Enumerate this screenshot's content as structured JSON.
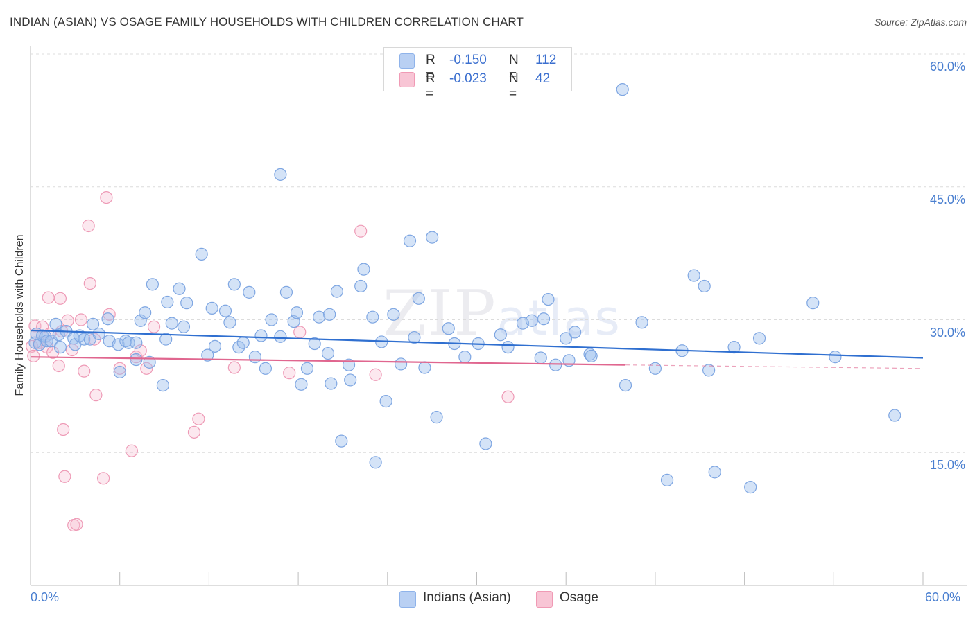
{
  "header": {
    "title": "INDIAN (ASIAN) VS OSAGE FAMILY HOUSEHOLDS WITH CHILDREN CORRELATION CHART",
    "source": "Source: ZipAtlas.com"
  },
  "watermark": {
    "zip": "ZIP",
    "atlas": "atlas"
  },
  "legend": {
    "r_label": "R =",
    "n_label": "N =",
    "entries": [
      {
        "name": "Indians (Asian)",
        "r": "-0.150",
        "n": "112",
        "color": "#8fb3ea",
        "fill": "#b9d0f3"
      },
      {
        "name": "Osage",
        "r": "-0.023",
        "n": "42",
        "color": "#f09ab5",
        "fill": "#f8c5d5"
      }
    ]
  },
  "colors": {
    "blue_line": "#2f6fd0",
    "pink_line": "#e0668f",
    "blue_point_stroke": "#7ea6e2",
    "blue_point_fill": "rgba(160,192,238,0.45)",
    "pink_point_stroke": "#ee9ab6",
    "pink_point_fill": "rgba(246,190,208,0.35)",
    "grid": "#dcdcdc",
    "tick_text": "#4a7fd0"
  },
  "chart_data": {
    "type": "scatter",
    "title": "INDIAN (ASIAN) VS OSAGE FAMILY HOUSEHOLDS WITH CHILDREN CORRELATION CHART",
    "xlabel": "",
    "ylabel": "Family Households with Children",
    "xlim": [
      0,
      60
    ],
    "ylim": [
      0,
      60
    ],
    "x_tick_labels": [
      "0.0%",
      "60.0%"
    ],
    "y_ticks": [
      15,
      30,
      45,
      60
    ],
    "y_tick_labels": [
      "15.0%",
      "30.0%",
      "45.0%",
      "60.0%"
    ],
    "grid": true,
    "series": [
      {
        "name": "Indians (Asian)",
        "r": -0.15,
        "n": 112,
        "trend": {
          "x": [
            0,
            60
          ],
          "y": [
            28.8,
            25.7
          ],
          "dashed_from": null
        },
        "points": [
          [
            0.3,
            27.4
          ],
          [
            0.4,
            28.4
          ],
          [
            0.6,
            27.2
          ],
          [
            0.8,
            28.2
          ],
          [
            1.0,
            28.1
          ],
          [
            1.1,
            27.6
          ],
          [
            1.4,
            27.6
          ],
          [
            1.7,
            29.5
          ],
          [
            1.9,
            28.3
          ],
          [
            2.0,
            26.9
          ],
          [
            2.4,
            28.7
          ],
          [
            2.9,
            27.9
          ],
          [
            3.0,
            27.2
          ],
          [
            3.3,
            28.2
          ],
          [
            3.6,
            27.8
          ],
          [
            4.0,
            27.8
          ],
          [
            4.2,
            29.5
          ],
          [
            4.6,
            28.4
          ],
          [
            5.2,
            30.1
          ],
          [
            5.3,
            27.6
          ],
          [
            5.9,
            27.2
          ],
          [
            6.0,
            24.1
          ],
          [
            6.4,
            27.6
          ],
          [
            6.6,
            27.4
          ],
          [
            7.1,
            25.5
          ],
          [
            7.1,
            27.4
          ],
          [
            7.4,
            29.9
          ],
          [
            7.7,
            30.8
          ],
          [
            8.0,
            25.2
          ],
          [
            8.2,
            34.0
          ],
          [
            8.9,
            22.6
          ],
          [
            9.1,
            27.8
          ],
          [
            9.2,
            32.0
          ],
          [
            9.5,
            29.6
          ],
          [
            10.0,
            33.5
          ],
          [
            10.3,
            29.2
          ],
          [
            10.5,
            31.9
          ],
          [
            11.5,
            37.4
          ],
          [
            11.9,
            26.0
          ],
          [
            12.2,
            31.3
          ],
          [
            12.4,
            27.0
          ],
          [
            13.1,
            31.0
          ],
          [
            13.4,
            29.7
          ],
          [
            13.7,
            34.0
          ],
          [
            14.0,
            26.9
          ],
          [
            14.3,
            27.4
          ],
          [
            14.7,
            33.1
          ],
          [
            15.1,
            25.8
          ],
          [
            15.5,
            28.2
          ],
          [
            15.8,
            24.5
          ],
          [
            16.2,
            30.0
          ],
          [
            16.8,
            28.1
          ],
          [
            17.2,
            33.1
          ],
          [
            17.7,
            29.8
          ],
          [
            17.9,
            30.8
          ],
          [
            18.2,
            22.7
          ],
          [
            18.6,
            24.5
          ],
          [
            19.1,
            27.3
          ],
          [
            19.4,
            30.3
          ],
          [
            20.0,
            26.2
          ],
          [
            20.1,
            30.6
          ],
          [
            20.2,
            22.8
          ],
          [
            20.6,
            33.2
          ],
          [
            20.9,
            16.3
          ],
          [
            21.4,
            24.9
          ],
          [
            21.5,
            23.2
          ],
          [
            22.2,
            33.8
          ],
          [
            22.4,
            35.7
          ],
          [
            23.0,
            30.3
          ],
          [
            23.2,
            13.9
          ],
          [
            23.6,
            27.5
          ],
          [
            23.9,
            20.8
          ],
          [
            24.4,
            30.6
          ],
          [
            24.9,
            25.0
          ],
          [
            25.5,
            38.9
          ],
          [
            25.8,
            28.0
          ],
          [
            26.1,
            32.4
          ],
          [
            26.5,
            24.6
          ],
          [
            27.0,
            39.3
          ],
          [
            27.3,
            19.0
          ],
          [
            28.1,
            29.0
          ],
          [
            28.5,
            27.3
          ],
          [
            29.2,
            25.8
          ],
          [
            30.1,
            27.3
          ],
          [
            30.6,
            16.0
          ],
          [
            31.6,
            28.3
          ],
          [
            32.1,
            26.9
          ],
          [
            33.1,
            29.6
          ],
          [
            33.7,
            29.9
          ],
          [
            34.3,
            25.7
          ],
          [
            34.8,
            32.3
          ],
          [
            34.5,
            30.1
          ],
          [
            35.3,
            24.9
          ],
          [
            36.0,
            27.9
          ],
          [
            36.2,
            25.4
          ],
          [
            36.6,
            28.6
          ],
          [
            37.6,
            26.1
          ],
          [
            37.7,
            25.9
          ],
          [
            40.0,
            22.6
          ],
          [
            41.1,
            29.7
          ],
          [
            42.0,
            24.5
          ],
          [
            42.8,
            11.9
          ],
          [
            43.8,
            26.5
          ],
          [
            44.6,
            35.0
          ],
          [
            45.3,
            33.8
          ],
          [
            45.6,
            24.3
          ],
          [
            46.0,
            12.8
          ],
          [
            47.3,
            26.9
          ],
          [
            48.4,
            11.1
          ],
          [
            49.0,
            27.9
          ],
          [
            52.6,
            31.9
          ],
          [
            54.1,
            25.8
          ],
          [
            58.1,
            19.2
          ],
          [
            39.8,
            56.0
          ],
          [
            16.8,
            46.4
          ]
        ]
      },
      {
        "name": "Osage",
        "r": -0.023,
        "n": 42,
        "trend": {
          "x": [
            0,
            40
          ],
          "y": [
            25.8,
            24.9
          ],
          "dashed_to": [
            60,
            24.5
          ]
        },
        "points": [
          [
            0.1,
            27.0
          ],
          [
            0.2,
            25.9
          ],
          [
            0.3,
            29.3
          ],
          [
            0.4,
            28.4
          ],
          [
            0.6,
            27.4
          ],
          [
            0.8,
            29.2
          ],
          [
            1.1,
            26.9
          ],
          [
            1.2,
            32.5
          ],
          [
            1.3,
            28.4
          ],
          [
            1.5,
            26.3
          ],
          [
            1.9,
            24.8
          ],
          [
            2.0,
            32.4
          ],
          [
            2.1,
            28.7
          ],
          [
            2.2,
            17.6
          ],
          [
            2.3,
            12.3
          ],
          [
            2.5,
            29.9
          ],
          [
            2.8,
            26.6
          ],
          [
            2.9,
            6.8
          ],
          [
            3.1,
            6.9
          ],
          [
            3.4,
            30.0
          ],
          [
            3.6,
            24.2
          ],
          [
            3.9,
            40.6
          ],
          [
            4.0,
            34.1
          ],
          [
            4.3,
            27.8
          ],
          [
            4.4,
            21.5
          ],
          [
            4.9,
            12.1
          ],
          [
            5.1,
            43.8
          ],
          [
            5.3,
            30.6
          ],
          [
            6.0,
            24.5
          ],
          [
            6.8,
            15.2
          ],
          [
            7.1,
            25.8
          ],
          [
            7.4,
            26.5
          ],
          [
            7.8,
            24.5
          ],
          [
            8.3,
            29.2
          ],
          [
            11.0,
            17.3
          ],
          [
            11.3,
            18.8
          ],
          [
            13.7,
            24.6
          ],
          [
            17.4,
            24.0
          ],
          [
            18.1,
            28.6
          ],
          [
            22.2,
            40.0
          ],
          [
            23.2,
            23.8
          ],
          [
            32.1,
            21.3
          ]
        ]
      }
    ]
  }
}
